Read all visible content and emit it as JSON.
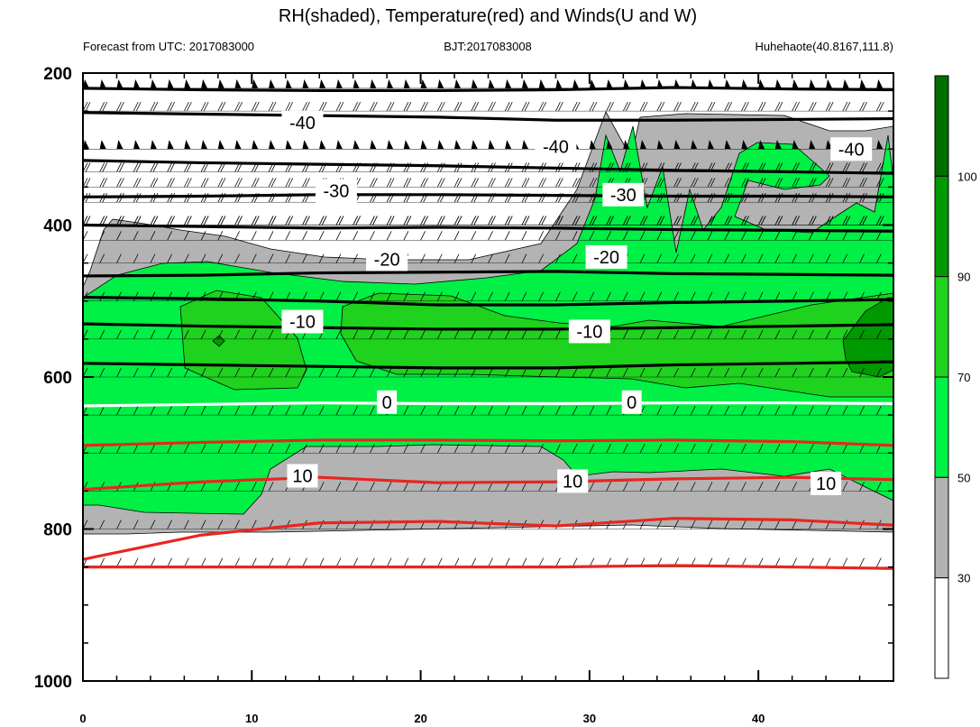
{
  "chart_data": {
    "type": "contour",
    "title": "RH(shaded), Temperature(red) and Winds(U and W)",
    "subtitle_left": "Forecast from UTC: 2017083000",
    "subtitle_center": "BJT:2017083008",
    "subtitle_right": "Huhehaote(40.8167,111.8)",
    "xlim": [
      0,
      48
    ],
    "ylim": [
      1000,
      200
    ],
    "x_ticks": [
      "0",
      "10",
      "20",
      "30",
      "40"
    ],
    "x_tick_values": [
      0,
      10,
      20,
      30,
      40
    ],
    "y_ticks": [
      "200",
      "400",
      "600",
      "800",
      "1000"
    ],
    "y_tick_values": [
      200,
      400,
      600,
      800,
      1000
    ],
    "rh_levels": [
      30,
      50,
      70,
      90,
      100
    ],
    "rh_colorbar_labels": [
      "100",
      "90",
      "70",
      "50",
      "30"
    ],
    "rh_colors": [
      "#ffffff",
      "#b3b3b3",
      "#00f046",
      "#1ed21e",
      "#009a00",
      "#006e00"
    ],
    "temperature_contours": [
      {
        "label": "-40",
        "value": -40,
        "color": "#000000",
        "y": [
          252,
          254,
          256,
          258,
          262,
          262,
          261,
          260
        ]
      },
      {
        "label": "-30",
        "value": -30,
        "color": "#000000",
        "y": [
          363,
          362,
          360,
          360,
          361,
          362,
          362,
          363
        ]
      },
      {
        "label": "-20",
        "value": -20,
        "color": "#000000",
        "y": [
          467,
          466,
          463,
          462,
          461,
          464,
          465,
          466
        ]
      },
      {
        "label": "-10",
        "value": -10,
        "color": "#000000",
        "y": [
          530,
          533,
          535,
          537,
          537,
          535,
          533,
          531
        ]
      },
      {
        "label": "0",
        "value": 0,
        "color": "#ffffff",
        "y": [
          638,
          636,
          634,
          635,
          635,
          634,
          634,
          635
        ]
      },
      {
        "label": "10",
        "value": 10,
        "color": "#e8261f",
        "y": [
          748,
          738,
          732,
          739,
          738,
          734,
          732,
          735
        ]
      }
    ],
    "contour_label_positions": [
      {
        "label": "-40",
        "x": 13,
        "p": 265
      },
      {
        "label": "-40",
        "x": 28,
        "p": 297
      },
      {
        "label": "-40",
        "x": 45.5,
        "p": 300
      },
      {
        "label": "-30",
        "x": 15,
        "p": 355
      },
      {
        "label": "-30",
        "x": 32,
        "p": 360
      },
      {
        "label": "-20",
        "x": 18,
        "p": 445
      },
      {
        "label": "-20",
        "x": 31,
        "p": 442
      },
      {
        "label": "-10",
        "x": 13,
        "p": 527
      },
      {
        "label": "-10",
        "x": 30,
        "p": 540
      },
      {
        "label": "0",
        "x": 18,
        "p": 633
      },
      {
        "label": "0",
        "x": 32.5,
        "p": 633
      },
      {
        "label": "10",
        "x": 13,
        "p": 730
      },
      {
        "label": "10",
        "x": 29,
        "p": 737
      },
      {
        "label": "10",
        "x": 44,
        "p": 740
      }
    ]
  }
}
